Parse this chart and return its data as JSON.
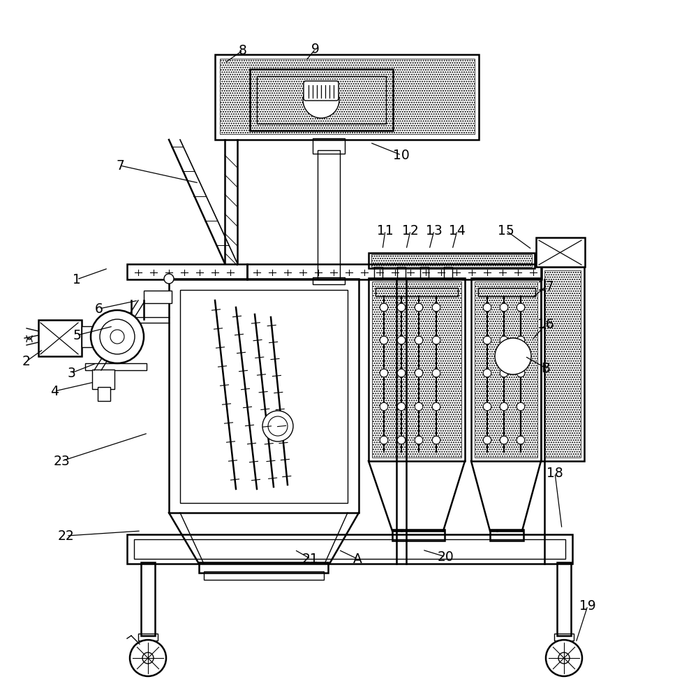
{
  "bg_color": "#ffffff",
  "line_color": "#000000",
  "figsize": [
    10.0,
    9.72
  ],
  "dpi": 100,
  "labels_pts": {
    "1": {
      "obj": [
        1.55,
        5.88
      ],
      "txt": [
        1.1,
        5.72
      ]
    },
    "2": {
      "obj": [
        0.62,
        4.72
      ],
      "txt": [
        0.38,
        4.55
      ]
    },
    "3": {
      "obj": [
        1.38,
        4.52
      ],
      "txt": [
        1.02,
        4.38
      ]
    },
    "4": {
      "obj": [
        1.35,
        4.25
      ],
      "txt": [
        0.78,
        4.12
      ]
    },
    "5": {
      "obj": [
        1.62,
        5.05
      ],
      "txt": [
        1.1,
        4.92
      ]
    },
    "6": {
      "obj": [
        1.98,
        5.42
      ],
      "txt": [
        1.42,
        5.3
      ]
    },
    "7": {
      "obj": [
        2.85,
        7.1
      ],
      "txt": [
        1.72,
        7.35
      ]
    },
    "8": {
      "obj": [
        3.22,
        8.82
      ],
      "txt": [
        3.48,
        9.0
      ]
    },
    "9": {
      "obj": [
        4.38,
        8.85
      ],
      "txt": [
        4.52,
        9.02
      ]
    },
    "10": {
      "obj": [
        5.3,
        7.68
      ],
      "txt": [
        5.75,
        7.5
      ]
    },
    "11": {
      "obj": [
        5.48,
        6.15
      ],
      "txt": [
        5.52,
        6.42
      ]
    },
    "12": {
      "obj": [
        5.82,
        6.15
      ],
      "txt": [
        5.88,
        6.42
      ]
    },
    "13": {
      "obj": [
        6.15,
        6.15
      ],
      "txt": [
        6.22,
        6.42
      ]
    },
    "14": {
      "obj": [
        6.48,
        6.15
      ],
      "txt": [
        6.55,
        6.42
      ]
    },
    "15": {
      "obj": [
        7.62,
        6.15
      ],
      "txt": [
        7.25,
        6.42
      ]
    },
    "16": {
      "obj": [
        7.62,
        4.85
      ],
      "txt": [
        7.82,
        5.08
      ]
    },
    "17": {
      "obj": [
        7.62,
        5.45
      ],
      "txt": [
        7.82,
        5.62
      ]
    },
    "18": {
      "obj": [
        8.05,
        2.15
      ],
      "txt": [
        7.95,
        2.95
      ]
    },
    "19": {
      "obj": [
        8.25,
        0.52
      ],
      "txt": [
        8.42,
        1.05
      ]
    },
    "20": {
      "obj": [
        6.05,
        1.85
      ],
      "txt": [
        6.38,
        1.75
      ]
    },
    "21": {
      "obj": [
        4.22,
        1.85
      ],
      "txt": [
        4.45,
        1.72
      ]
    },
    "22": {
      "obj": [
        2.02,
        2.12
      ],
      "txt": [
        0.95,
        2.05
      ]
    },
    "23": {
      "obj": [
        2.12,
        3.52
      ],
      "txt": [
        0.88,
        3.12
      ]
    },
    "A": {
      "obj": [
        4.85,
        1.85
      ],
      "txt": [
        5.12,
        1.72
      ]
    },
    "B": {
      "obj": [
        7.52,
        4.62
      ],
      "txt": [
        7.82,
        4.45
      ]
    }
  }
}
